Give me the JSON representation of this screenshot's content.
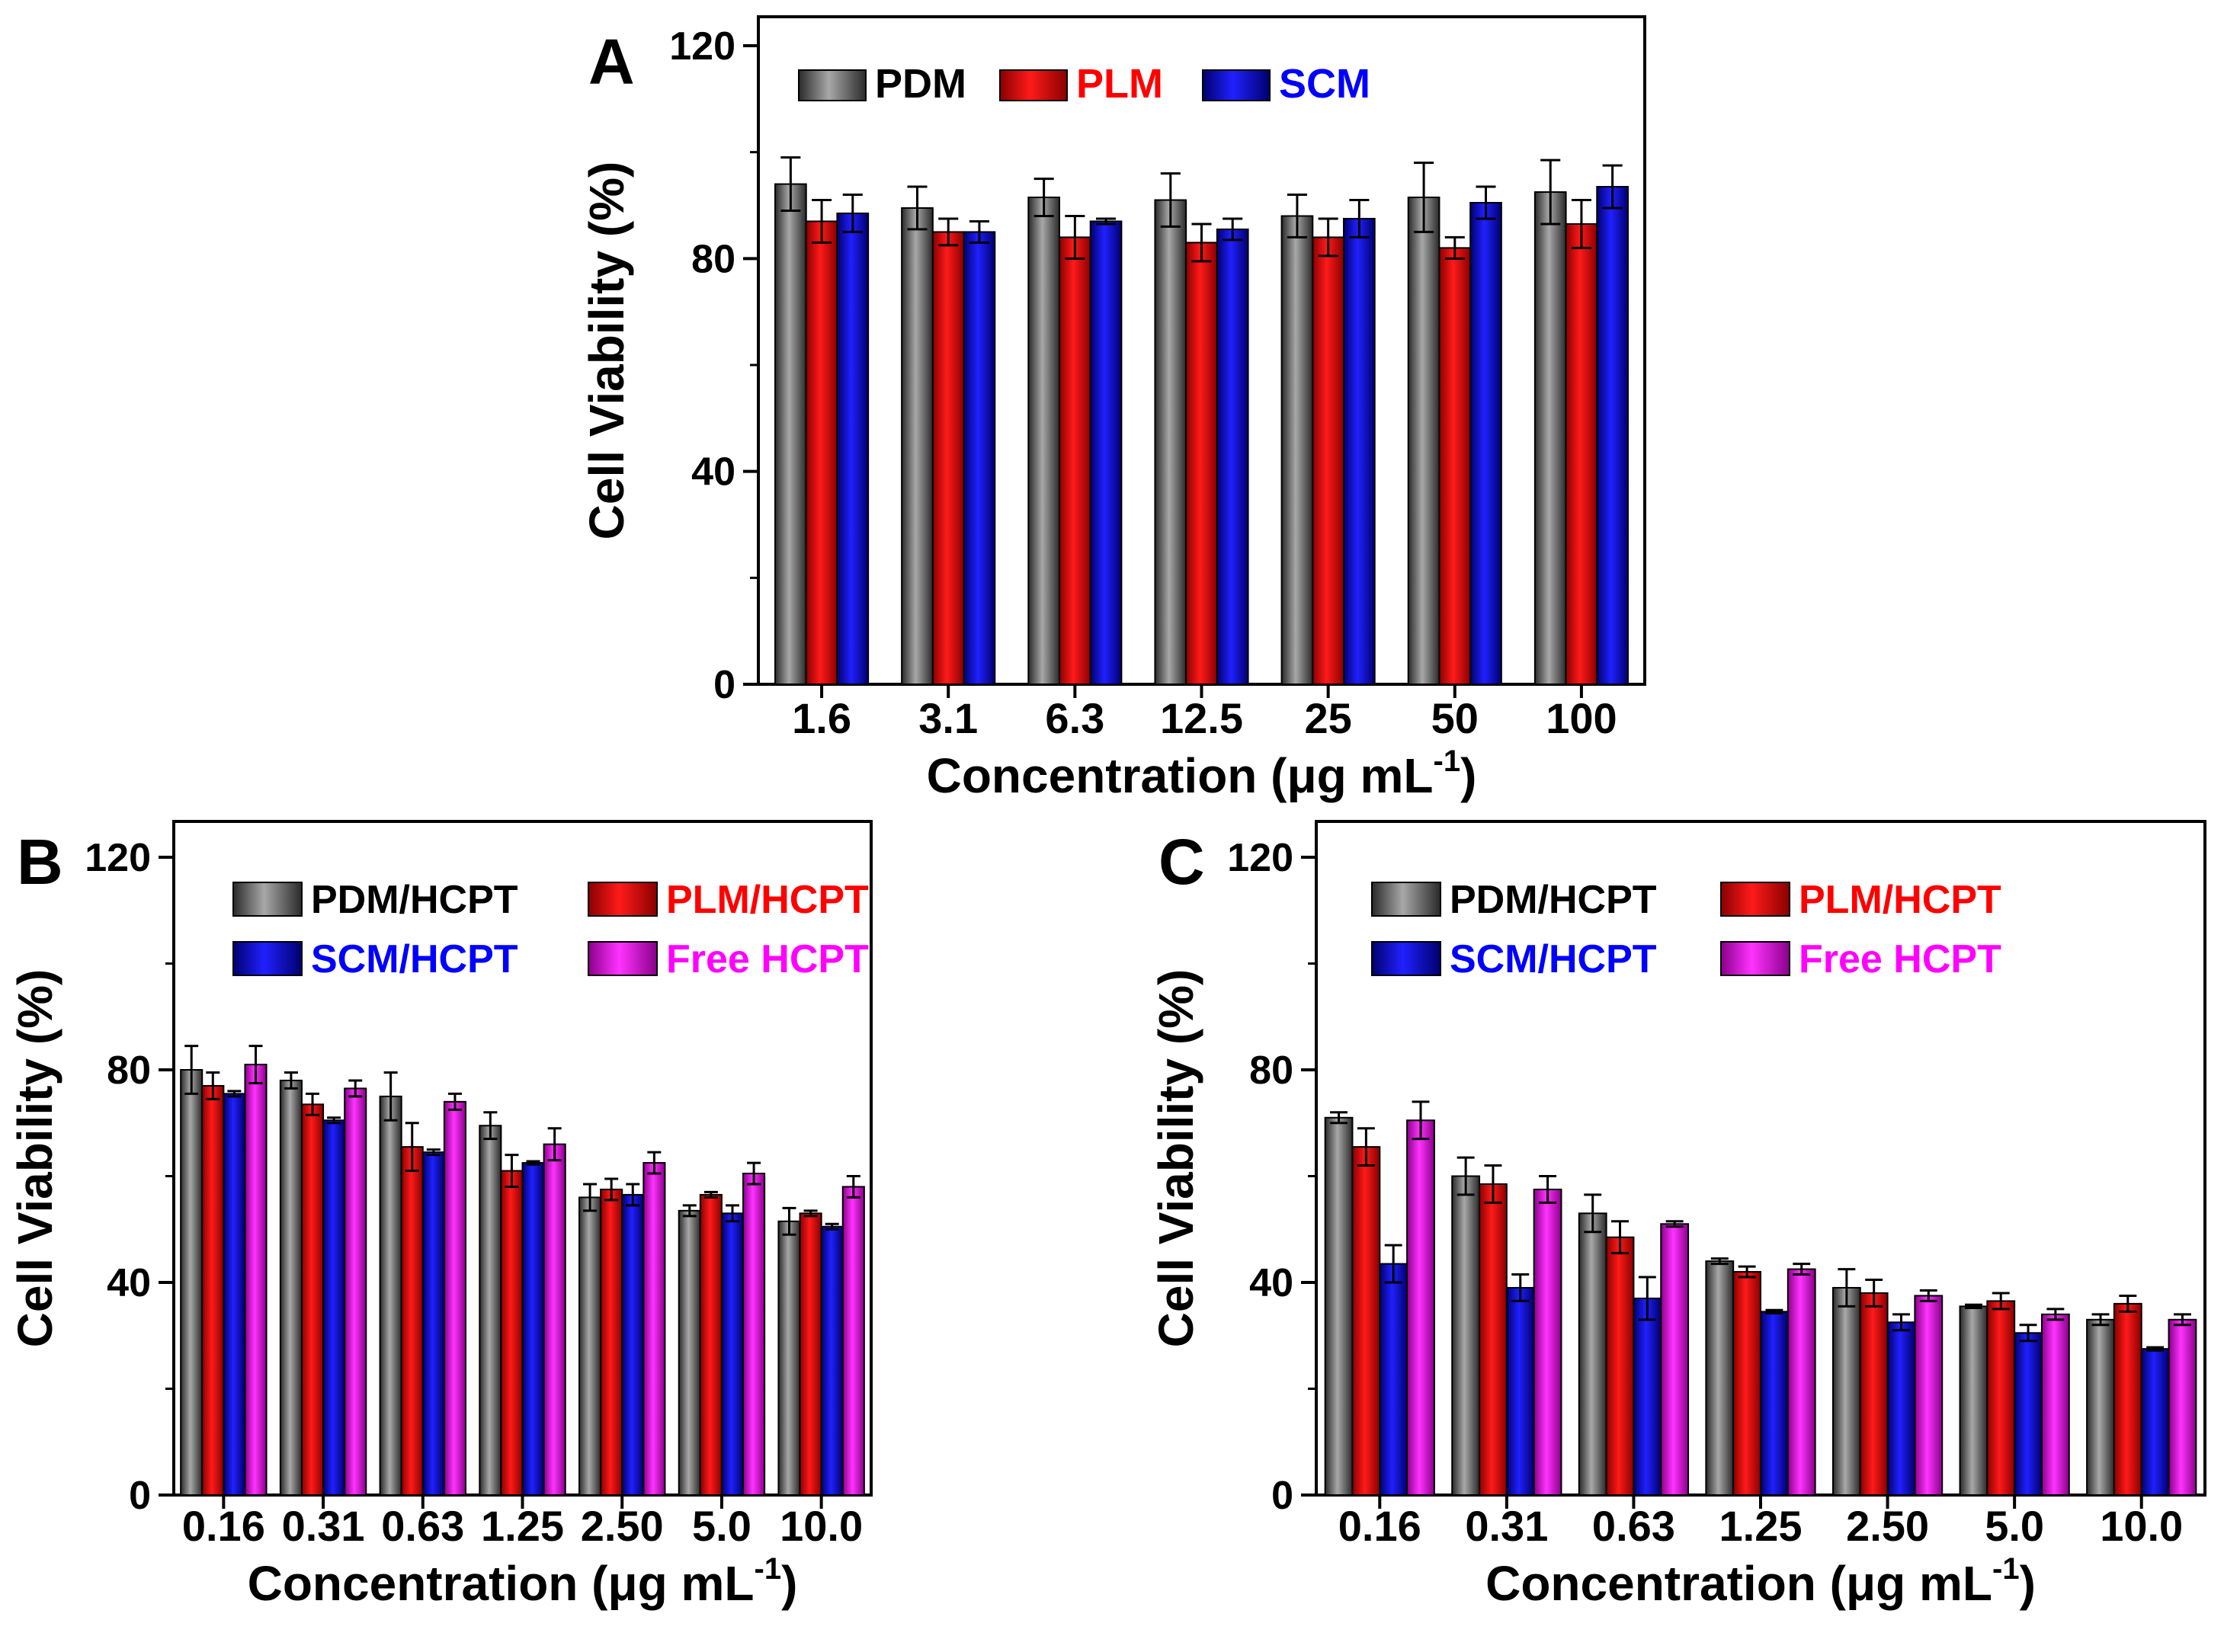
{
  "chart_data": [
    {
      "type": "bar",
      "panel_label": "A",
      "title": "",
      "xlabel": "Concentration (μg mL",
      "xlabel_sup": "-1",
      "xlabel_close": ")",
      "ylabel": "Cell Viability (%)",
      "ylim": [
        0,
        120
      ],
      "yticks": [
        "0",
        "40",
        "80",
        "120"
      ],
      "legend_position": "top-left",
      "categories": [
        "1.6",
        "3.1",
        "6.3",
        "12.5",
        "25",
        "50",
        "100"
      ],
      "series": [
        {
          "name": "PDM",
          "color": "#606060",
          "legend_text_color": "#000000",
          "values": [
            94,
            89.5,
            91.5,
            91,
            88,
            91.5,
            92.5
          ],
          "errors": [
            5,
            4,
            3.5,
            5,
            4,
            6.5,
            6
          ]
        },
        {
          "name": "PLM",
          "color": "#ff0000",
          "legend_text_color": "#ff0000",
          "values": [
            87,
            85,
            84,
            83,
            84,
            82,
            86.5
          ],
          "errors": [
            4,
            2.5,
            4,
            3.5,
            3.5,
            2,
            4.5
          ]
        },
        {
          "name": "SCM",
          "color": "#0000ff",
          "legend_text_color": "#0000ff",
          "values": [
            88.5,
            85,
            87,
            85.5,
            87.5,
            90.5,
            93.5
          ],
          "errors": [
            3.5,
            2,
            0.5,
            2,
            3.5,
            3,
            4
          ]
        }
      ]
    },
    {
      "type": "bar",
      "panel_label": "B",
      "title": "",
      "xlabel": "Concentration (μg mL",
      "xlabel_sup": "-1",
      "xlabel_close": ")",
      "ylabel": "Cell Viability (%)",
      "ylim": [
        0,
        120
      ],
      "yticks": [
        "0",
        "40",
        "80",
        "120"
      ],
      "legend_position": "top-left",
      "categories": [
        "0.16",
        "0.31",
        "0.63",
        "1.25",
        "2.50",
        "5.0",
        "10.0"
      ],
      "series": [
        {
          "name": "PDM/HCPT",
          "color": "#606060",
          "legend_text_color": "#000000",
          "values": [
            80,
            78,
            75,
            69.5,
            56,
            53.5,
            51.5
          ],
          "errors": [
            4.5,
            1.5,
            4.5,
            2.5,
            2.5,
            1,
            2.5
          ]
        },
        {
          "name": "PLM/HCPT",
          "color": "#ff0000",
          "legend_text_color": "#ff0000",
          "values": [
            77,
            73.5,
            65.5,
            61,
            57.5,
            56.5,
            53
          ],
          "errors": [
            2.5,
            2,
            4.5,
            3,
            2,
            0.5,
            0.5
          ]
        },
        {
          "name": "SCM/HCPT",
          "color": "#0000ff",
          "legend_text_color": "#0000ff",
          "values": [
            75.5,
            70.5,
            64.5,
            62.5,
            56.5,
            53,
            50.5
          ],
          "errors": [
            0.5,
            0.5,
            0.5,
            0.3,
            2,
            1.5,
            0.5
          ]
        },
        {
          "name": "Free HCPT",
          "color": "#ff00ff",
          "legend_text_color": "#ff00ff",
          "values": [
            81,
            76.5,
            74,
            66,
            62.5,
            60.5,
            58
          ],
          "errors": [
            3.5,
            1.5,
            1.5,
            3,
            2,
            2,
            2
          ]
        }
      ]
    },
    {
      "type": "bar",
      "panel_label": "C",
      "title": "",
      "xlabel": "Concentration (μg mL",
      "xlabel_sup": "-1",
      "xlabel_close": ")",
      "ylabel": "Cell Viability (%)",
      "ylim": [
        0,
        120
      ],
      "yticks": [
        "0",
        "40",
        "80",
        "120"
      ],
      "legend_position": "top-left",
      "categories": [
        "0.16",
        "0.31",
        "0.63",
        "1.25",
        "2.50",
        "5.0",
        "10.0"
      ],
      "series": [
        {
          "name": "PDM/HCPT",
          "color": "#606060",
          "legend_text_color": "#000000",
          "values": [
            71,
            60,
            53,
            44,
            39,
            35.5,
            33
          ],
          "errors": [
            1,
            3.5,
            3.5,
            0.5,
            3.5,
            0.3,
            1
          ]
        },
        {
          "name": "PLM/HCPT",
          "color": "#ff0000",
          "legend_text_color": "#ff0000",
          "values": [
            65.5,
            58.5,
            48.5,
            42,
            38,
            36.5,
            36
          ],
          "errors": [
            3.5,
            3.5,
            3,
            1,
            2.5,
            1.5,
            1.5
          ]
        },
        {
          "name": "SCM/HCPT",
          "color": "#0000ff",
          "legend_text_color": "#0000ff",
          "values": [
            43.5,
            39,
            37,
            34.5,
            32.5,
            30.5,
            27.5
          ],
          "errors": [
            3.5,
            2.5,
            4,
            0.3,
            1.5,
            1.5,
            0.3
          ]
        },
        {
          "name": "Free HCPT",
          "color": "#ff00ff",
          "legend_text_color": "#ff00ff",
          "values": [
            70.5,
            57.5,
            51,
            42.5,
            37.5,
            34,
            33
          ],
          "errors": [
            3.5,
            2.5,
            0.5,
            1,
            1,
            1,
            1
          ]
        }
      ]
    }
  ]
}
